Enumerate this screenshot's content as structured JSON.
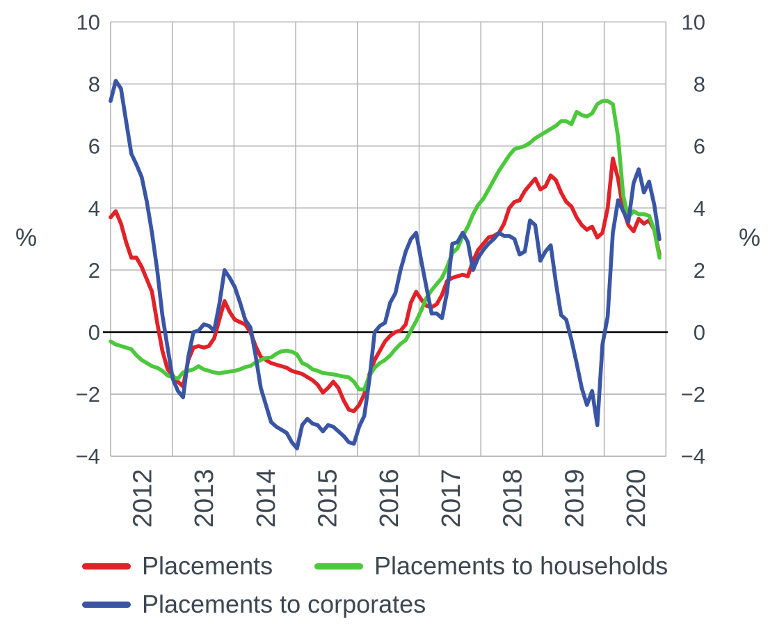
{
  "figure": {
    "unit_left": "%",
    "unit_right": "%"
  },
  "chart_data": {
    "type": "line",
    "title": "",
    "xlabel": "",
    "ylabel_left": "%",
    "ylabel_right": "%",
    "frequency": "monthly",
    "x_start": "2012-01",
    "x_end": "2020-11",
    "ylim": [
      -4,
      10
    ],
    "y_ticks": [
      10,
      8,
      6,
      4,
      2,
      0,
      -2,
      -4
    ],
    "x_tick_years": [
      "2012",
      "2013",
      "2014",
      "2015",
      "2016",
      "2017",
      "2018",
      "2019",
      "2020"
    ],
    "grid": true,
    "zero_line": true,
    "legend_position": "bottom-left",
    "colors": {
      "grid": "#b1b1b1",
      "zero_line": "#000000",
      "text": "#3d4751",
      "background": "#ffffff"
    },
    "series": [
      {
        "name": "Placements",
        "color": "#e22128",
        "values": [
          3.7,
          3.9,
          3.5,
          2.9,
          2.4,
          2.4,
          2.1,
          1.7,
          1.3,
          0.3,
          -0.6,
          -1.2,
          -1.4,
          -1.6,
          -1.75,
          -0.9,
          -0.5,
          -0.45,
          -0.5,
          -0.45,
          -0.2,
          0.4,
          1.0,
          0.65,
          0.4,
          0.32,
          0.25,
          0.0,
          -0.45,
          -0.8,
          -0.9,
          -1.0,
          -1.05,
          -1.1,
          -1.15,
          -1.25,
          -1.3,
          -1.35,
          -1.45,
          -1.55,
          -1.7,
          -1.95,
          -1.8,
          -1.6,
          -1.8,
          -2.2,
          -2.5,
          -2.55,
          -2.35,
          -2.0,
          -1.35,
          -0.9,
          -0.6,
          -0.3,
          -0.12,
          0.0,
          0.05,
          0.25,
          0.95,
          1.3,
          1.05,
          0.85,
          0.8,
          0.9,
          1.2,
          1.65,
          1.75,
          1.8,
          1.85,
          1.8,
          2.3,
          2.65,
          2.85,
          3.05,
          3.1,
          3.2,
          3.5,
          4.0,
          4.2,
          4.25,
          4.55,
          4.75,
          4.95,
          4.6,
          4.7,
          5.05,
          4.9,
          4.5,
          4.2,
          4.05,
          3.7,
          3.45,
          3.3,
          3.4,
          3.05,
          3.2,
          4.0,
          5.6,
          4.95,
          3.95,
          3.45,
          3.25,
          3.65,
          3.5,
          3.6,
          3.3,
          2.5
        ]
      },
      {
        "name": "Placements to households",
        "color": "#4cc83c",
        "values": [
          -0.3,
          -0.4,
          -0.45,
          -0.5,
          -0.55,
          -0.75,
          -0.9,
          -1.0,
          -1.1,
          -1.15,
          -1.25,
          -1.4,
          -1.45,
          -1.5,
          -1.3,
          -1.25,
          -1.2,
          -1.1,
          -1.2,
          -1.25,
          -1.3,
          -1.33,
          -1.3,
          -1.27,
          -1.25,
          -1.2,
          -1.13,
          -1.09,
          -0.98,
          -0.9,
          -0.83,
          -0.82,
          -0.7,
          -0.62,
          -0.6,
          -0.63,
          -0.72,
          -1.0,
          -1.07,
          -1.2,
          -1.25,
          -1.32,
          -1.34,
          -1.36,
          -1.4,
          -1.43,
          -1.46,
          -1.6,
          -1.85,
          -1.85,
          -1.4,
          -1.15,
          -1.0,
          -0.9,
          -0.75,
          -0.55,
          -0.38,
          -0.26,
          0.05,
          0.35,
          0.7,
          1.1,
          1.35,
          1.55,
          1.75,
          2.1,
          2.55,
          2.7,
          3.1,
          3.4,
          3.8,
          4.1,
          4.3,
          4.6,
          4.9,
          5.2,
          5.45,
          5.7,
          5.9,
          5.95,
          6.0,
          6.1,
          6.25,
          6.35,
          6.45,
          6.55,
          6.65,
          6.8,
          6.8,
          6.7,
          7.1,
          7.0,
          6.95,
          7.05,
          7.35,
          7.45,
          7.45,
          7.35,
          6.3,
          4.4,
          3.7,
          3.9,
          3.8,
          3.8,
          3.75,
          3.3,
          2.4
        ]
      },
      {
        "name": "Placements to corporates",
        "color": "#3a55a4",
        "values": [
          7.45,
          8.1,
          7.85,
          6.8,
          5.75,
          5.4,
          5.0,
          4.2,
          3.2,
          2.0,
          0.55,
          -0.5,
          -1.5,
          -1.9,
          -2.1,
          -0.8,
          0.0,
          0.05,
          0.25,
          0.2,
          0.05,
          0.9,
          2.0,
          1.75,
          1.45,
          0.95,
          0.4,
          0.15,
          -0.75,
          -1.8,
          -2.35,
          -2.9,
          -3.05,
          -3.15,
          -3.25,
          -3.55,
          -3.75,
          -3.0,
          -2.8,
          -2.95,
          -3.0,
          -3.2,
          -3.0,
          -3.05,
          -3.2,
          -3.35,
          -3.55,
          -3.6,
          -3.05,
          -2.7,
          -1.5,
          0.0,
          0.2,
          0.3,
          0.95,
          1.25,
          2.0,
          2.6,
          3.0,
          3.2,
          2.3,
          1.45,
          0.6,
          0.6,
          0.45,
          1.3,
          2.85,
          2.9,
          3.2,
          2.9,
          2.0,
          2.4,
          2.65,
          2.85,
          3.0,
          3.2,
          3.1,
          3.1,
          3.0,
          2.5,
          2.6,
          3.6,
          3.45,
          2.3,
          2.6,
          2.8,
          1.6,
          0.55,
          0.4,
          -0.25,
          -1.0,
          -1.8,
          -2.35,
          -1.9,
          -3.0,
          -0.4,
          0.5,
          3.2,
          4.25,
          3.9,
          3.55,
          4.8,
          5.25,
          4.5,
          4.85,
          4.1,
          3.0
        ]
      }
    ]
  }
}
